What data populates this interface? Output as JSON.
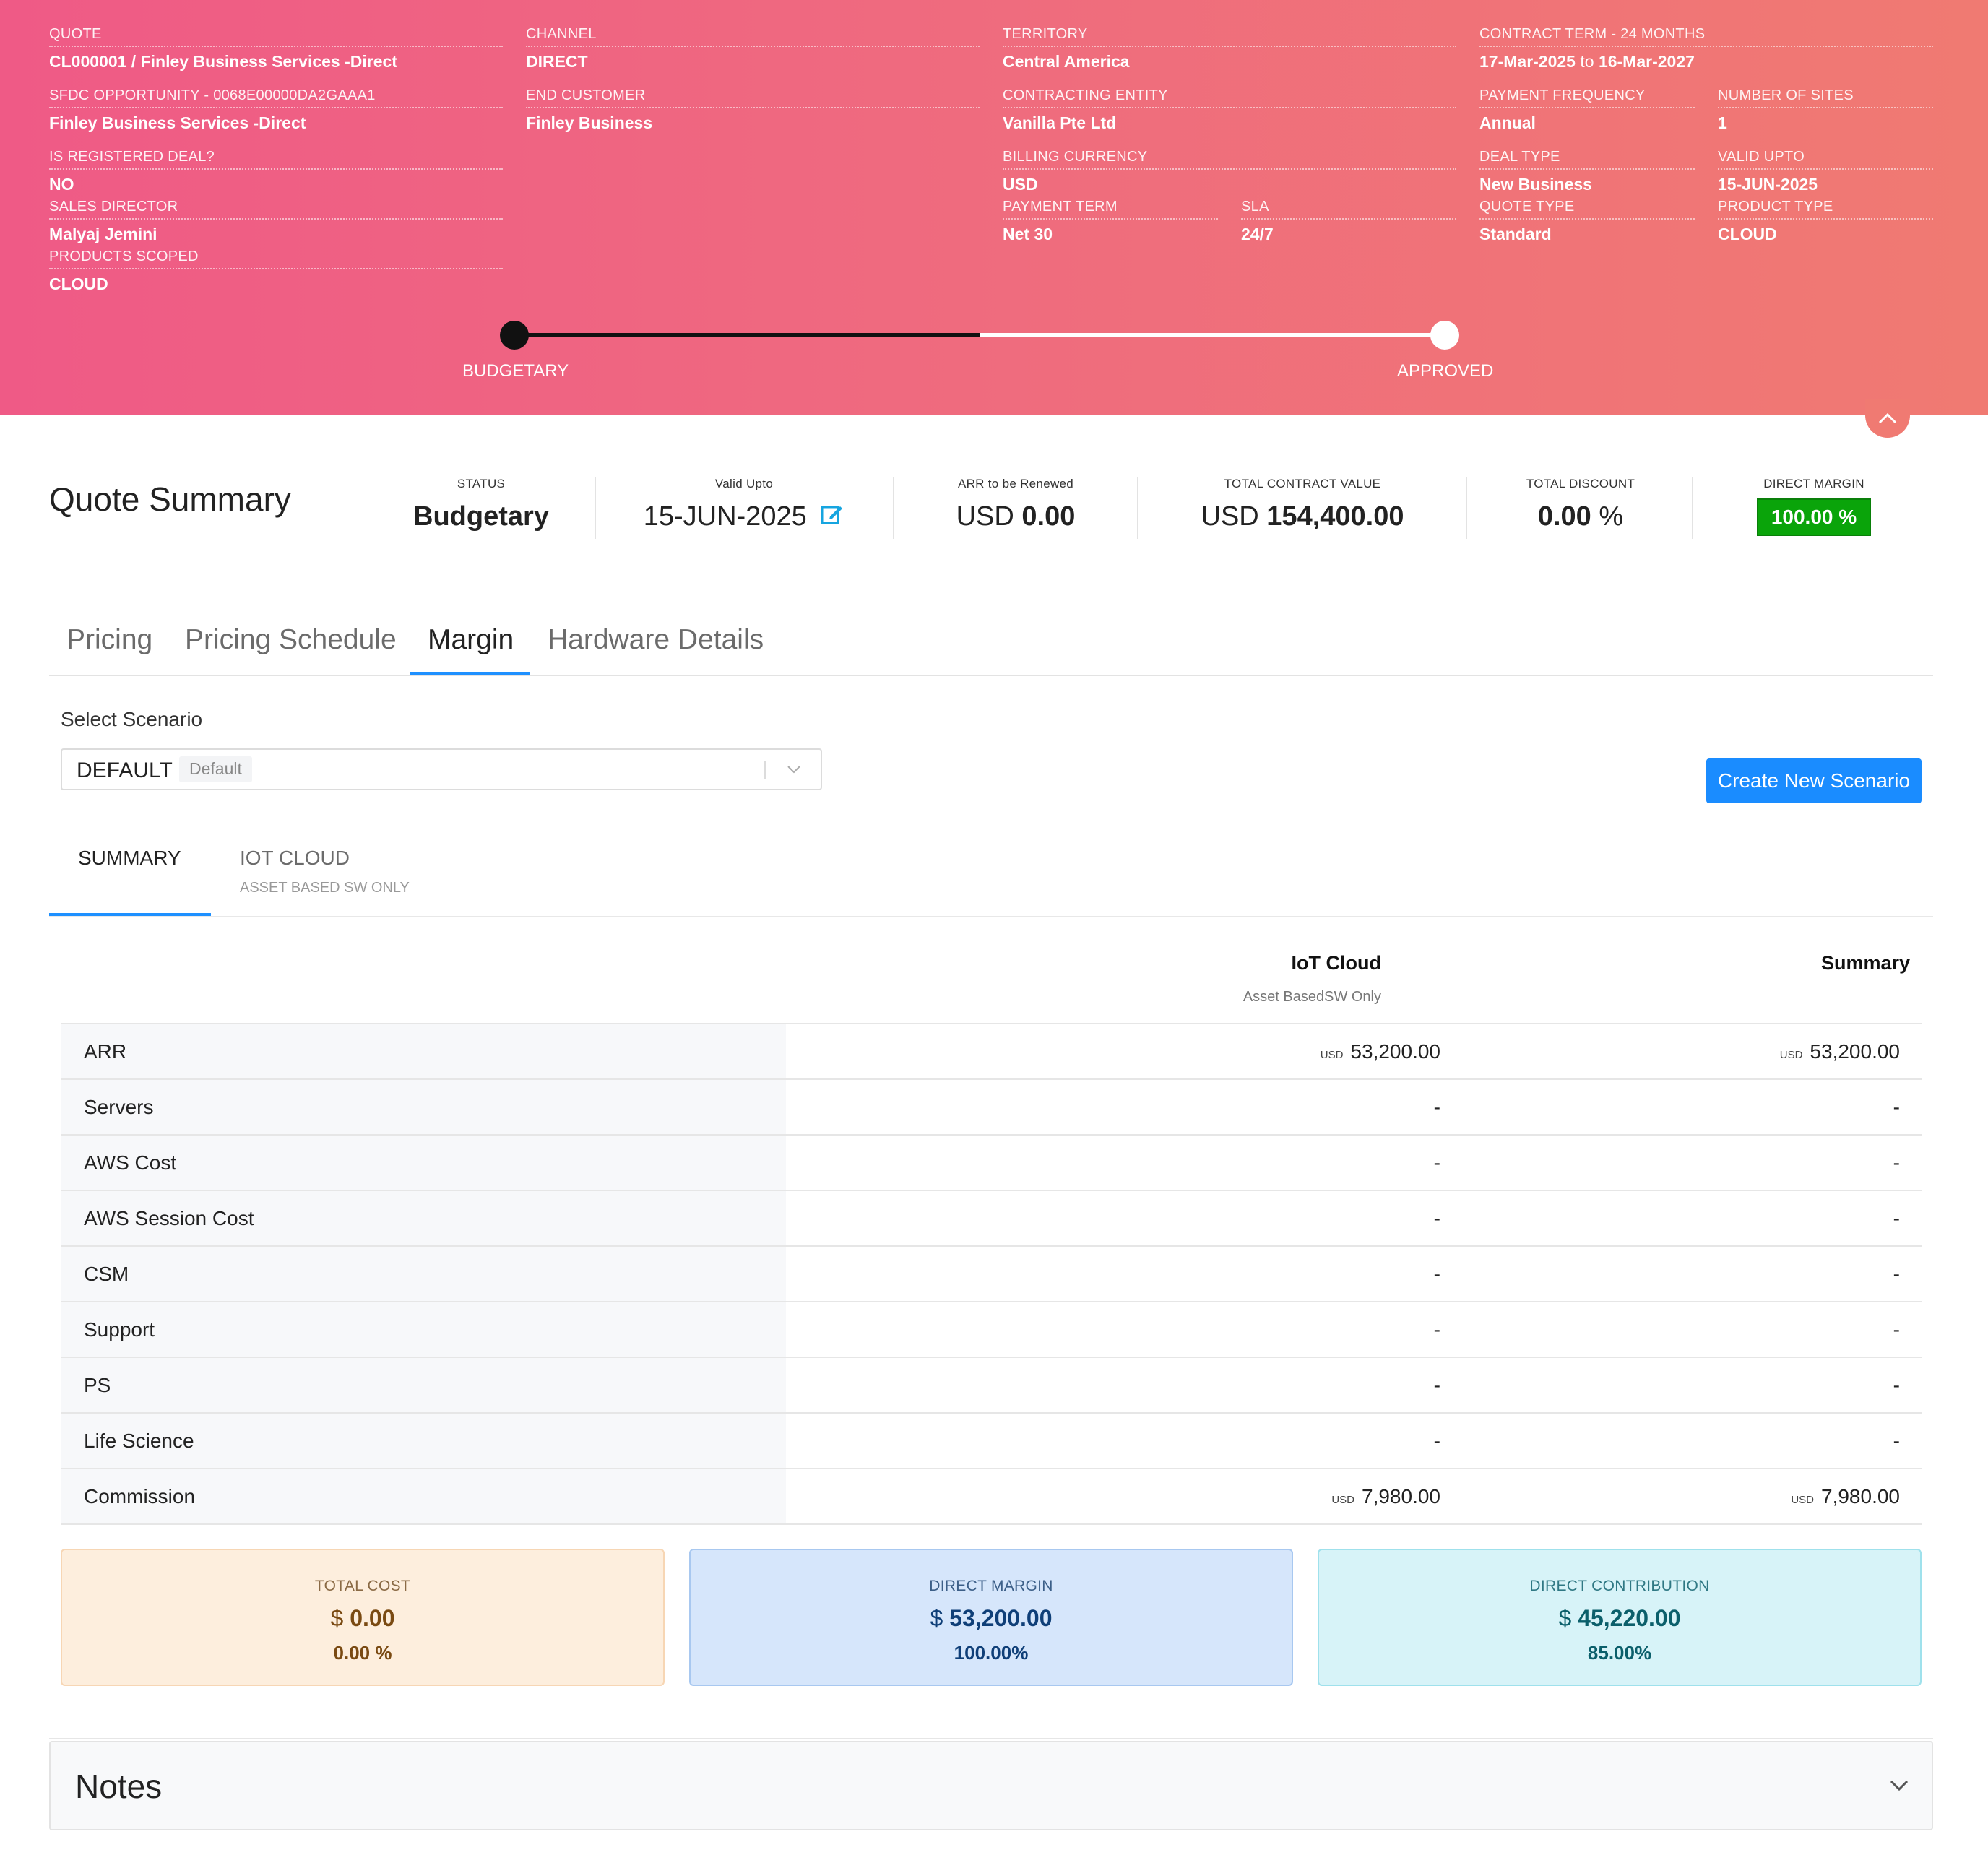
{
  "header": {
    "quote": {
      "label": "QUOTE",
      "value": "CL000001 / Finley Business Services -Direct"
    },
    "sfdc": {
      "label": "SFDC OPPORTUNITY - 0068e00000DA2GAAA1",
      "value": "Finley Business Services -Direct"
    },
    "registered": {
      "label": "IS REGISTERED DEAL?",
      "value": "NO"
    },
    "sales_director": {
      "label": "SALES DIRECTOR",
      "value": "Malyaj Jemini"
    },
    "products_scoped": {
      "label": "PRODUCTS SCOPED",
      "value": "CLOUD"
    },
    "channel": {
      "label": "CHANNEL",
      "value": "DIRECT"
    },
    "end_customer": {
      "label": "END CUSTOMER",
      "value": "Finley Business"
    },
    "territory": {
      "label": "TERRITORY",
      "value": "Central America"
    },
    "contracting_entity": {
      "label": "CONTRACTING ENTITY",
      "value": "Vanilla Pte Ltd"
    },
    "billing_currency": {
      "label": "BILLING CURRENCY",
      "value": "USD"
    },
    "payment_term": {
      "label": "PAYMENT TERM",
      "value": "Net 30"
    },
    "sla": {
      "label": "SLA",
      "value": "24/7"
    },
    "contract_term": {
      "label": "CONTRACT TERM - 24 MONTHS",
      "start": "17-Mar-2025",
      "to": "to",
      "end": "16-Mar-2027"
    },
    "payment_frequency": {
      "label": "PAYMENT FREQUENCY",
      "value": "Annual"
    },
    "number_of_sites": {
      "label": "NUMBER OF SITES",
      "value": "1"
    },
    "deal_type": {
      "label": "DEAL TYPE",
      "value": "New Business"
    },
    "valid_upto": {
      "label": "VALID UPTO",
      "value": "15-JUN-2025"
    },
    "quote_type": {
      "label": "QUOTE TYPE",
      "value": "Standard"
    },
    "product_type": {
      "label": "PRODUCT TYPE",
      "value": "CLOUD"
    }
  },
  "progress": {
    "steps": [
      "BUDGETARY",
      "APPROVED"
    ],
    "current_step": 1,
    "progress_fraction": 0.5
  },
  "summary": {
    "title": "Quote Summary",
    "status": {
      "label": "STATUS",
      "value": "Budgetary"
    },
    "valid_upto": {
      "label": "Valid Upto",
      "value": "15-JUN-2025"
    },
    "arr_renewed": {
      "label": "ARR to be Renewed",
      "currency": "USD",
      "value": "0.00"
    },
    "total_contract_value": {
      "label": "TOTAL CONTRACT VALUE",
      "currency": "USD",
      "value": "154,400.00"
    },
    "total_discount": {
      "label": "TOTAL DISCOUNT",
      "value": "0.00",
      "unit": "%"
    },
    "direct_margin": {
      "label": "DIRECT MARGIN",
      "value": "100.00 %"
    }
  },
  "tabs": [
    "Pricing",
    "Pricing Schedule",
    "Margin",
    "Hardware Details"
  ],
  "active_tab": "Margin",
  "scenario": {
    "label": "Select Scenario",
    "selected": "DEFAULT",
    "tag": "Default",
    "create_button": "Create New Scenario"
  },
  "subtabs": {
    "summary": "SUMMARY",
    "iot": "IOT CLOUD",
    "iot_sub": "ASSET BASED SW ONLY"
  },
  "table": {
    "columns": [
      {
        "title": "IoT Cloud",
        "subtitle": "Asset BasedSW Only"
      },
      {
        "title": "Summary",
        "subtitle": ""
      }
    ],
    "currency_tag": "USD",
    "rows": [
      {
        "label": "ARR",
        "iot": "53,200.00",
        "summary": "53,200.00",
        "cur": true
      },
      {
        "label": "Servers",
        "iot": "-",
        "summary": "-",
        "cur": false
      },
      {
        "label": "AWS Cost",
        "iot": "-",
        "summary": "-",
        "cur": false
      },
      {
        "label": "AWS Session Cost",
        "iot": "-",
        "summary": "-",
        "cur": false
      },
      {
        "label": "CSM",
        "iot": "-",
        "summary": "-",
        "cur": false
      },
      {
        "label": "Support",
        "iot": "-",
        "summary": "-",
        "cur": false
      },
      {
        "label": "PS",
        "iot": "-",
        "summary": "-",
        "cur": false
      },
      {
        "label": "Life Science",
        "iot": "-",
        "summary": "-",
        "cur": false
      },
      {
        "label": "Commission",
        "iot": "7,980.00",
        "summary": "7,980.00",
        "cur": true
      }
    ]
  },
  "cards": {
    "total_cost": {
      "label": "TOTAL COST",
      "symbol": "$",
      "value": "0.00",
      "pct": "0.00 %"
    },
    "direct_margin": {
      "label": "DIRECT MARGIN",
      "symbol": "$",
      "value": "53,200.00",
      "pct": "100.00%"
    },
    "direct_contribution": {
      "label": "DIRECT CONTRIBUTION",
      "symbol": "$",
      "value": "45,220.00",
      "pct": "85.00%"
    }
  },
  "notes": {
    "title": "Notes"
  },
  "colors": {
    "header_start": "#ef5a86",
    "header_end": "#f07a72",
    "accent_blue": "#1a8cff",
    "status_purple": "#8b64a8",
    "margin_green": "#0aa40a"
  }
}
